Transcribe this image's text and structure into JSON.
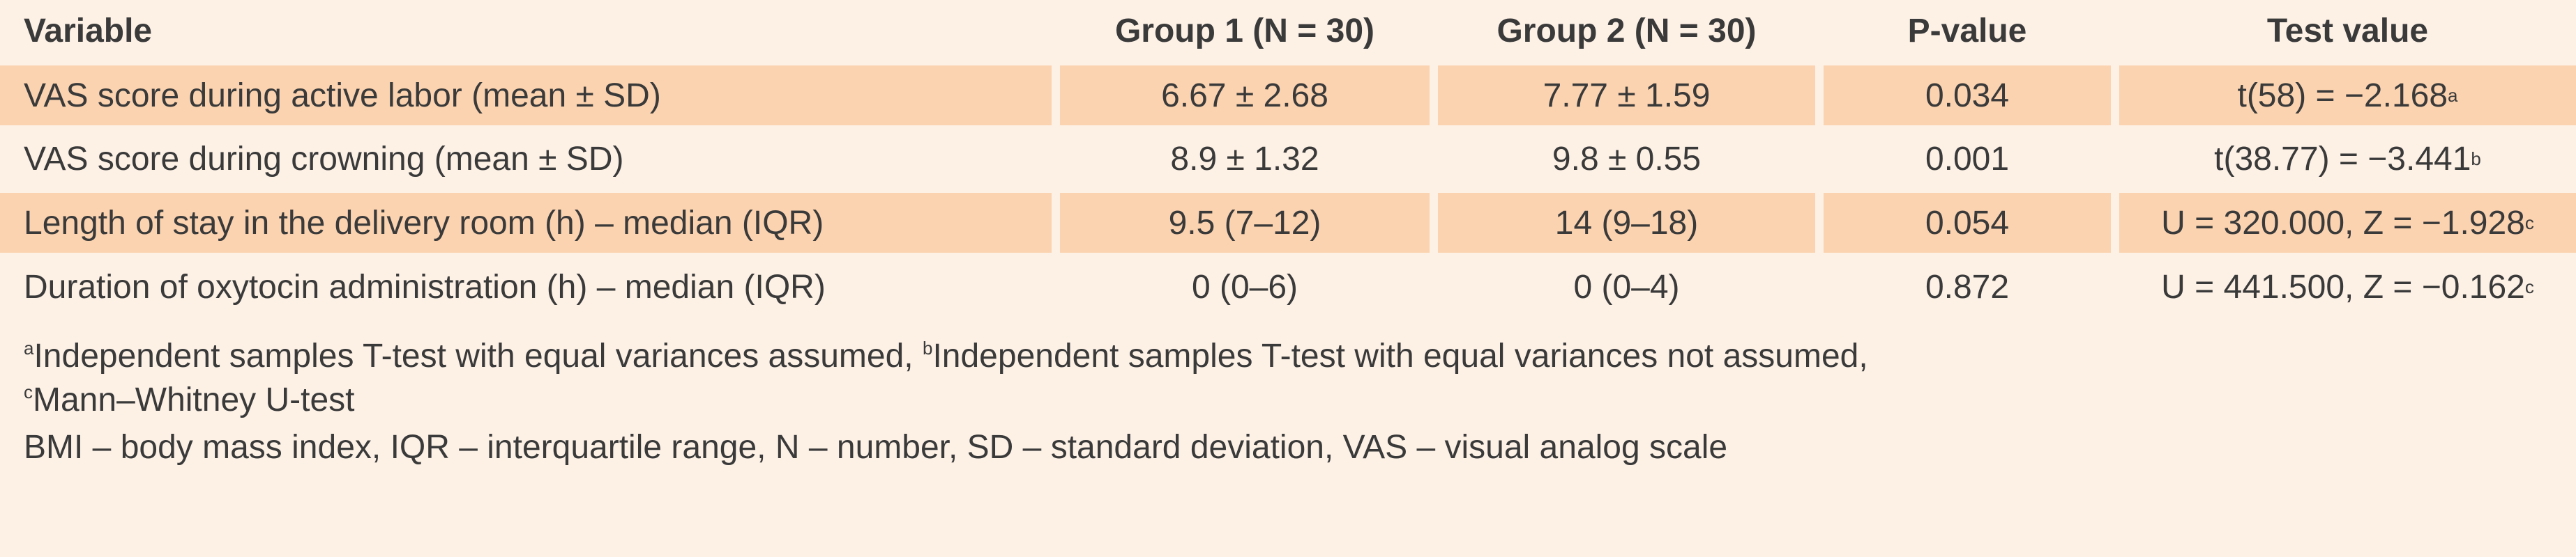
{
  "table": {
    "header": [
      "Variable",
      "Group 1 (N = 30)",
      "Group 2 (N = 30)",
      "P-value",
      "Test value"
    ],
    "rows": [
      {
        "variable": "VAS score during active labor (mean ± SD)",
        "group1": "6.67 ± 2.68",
        "group2": "7.77 ± 1.59",
        "p": "0.034",
        "test": "t(58) = −2.168",
        "note": "a"
      },
      {
        "variable": "VAS score during crowning (mean ± SD)",
        "group1": "8.9 ± 1.32",
        "group2": "9.8 ± 0.55",
        "p": "0.001",
        "test": "t(38.77) = −3.441",
        "note": "b"
      },
      {
        "variable": "Length of stay in the delivery room (h) – median (IQR)",
        "group1": "9.5 (7–12)",
        "group2": "14 (9–18)",
        "p": "0.054",
        "test": "U = 320.000, Z = −1.928",
        "note": "c"
      },
      {
        "variable": "Duration of oxytocin administration (h) – median (IQR)",
        "group1": "0 (0–6)",
        "group2": "0 (0–4)",
        "p": "0.872",
        "test": "U = 441.500, Z = −0.162",
        "note": "c"
      }
    ]
  },
  "footnotes": {
    "notes": [
      {
        "mark": "a",
        "text": "Independent samples T-test with equal variances assumed, "
      },
      {
        "mark": "b",
        "text": "Independent samples T-test with equal variances not assumed,"
      },
      {
        "mark": "c",
        "text": "Mann–Whitney U-test"
      }
    ],
    "abbreviations": "BMI – body mass index, IQR – interquartile range, N – number, SD – standard deviation, VAS – visual analog scale"
  }
}
